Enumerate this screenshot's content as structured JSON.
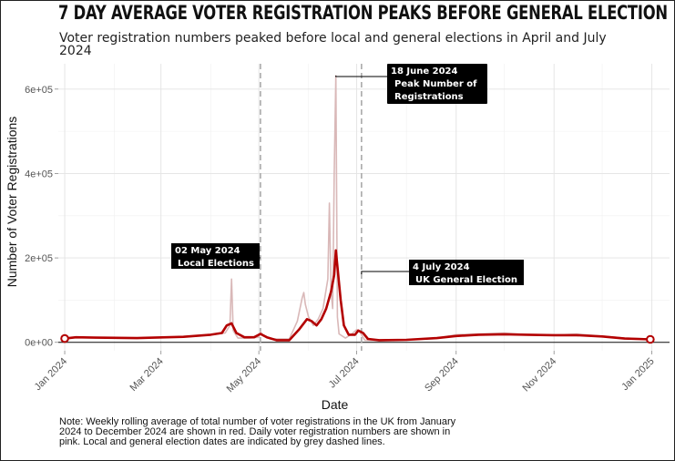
{
  "title": "7 DAY AVERAGE VOTER REGISTRATION PEAKS BEFORE GENERAL ELECTION",
  "subtitle": "Voter registration numbers peaked before local and general elections in April and July 2024",
  "note": "Note: Weekly rolling average of total number of voter registrations in the UK from January 2024 to December 2024 are shown in red. Daily voter registration numbers are shown in pink. Local and general election dates are indicated by grey dashed lines.",
  "colors": {
    "average": "#b30000",
    "daily": "#d9b8b8",
    "dashed": "#aaaaaa",
    "annotation_bg": "#000000"
  },
  "chart_data": {
    "type": "line",
    "xlabel": "Date",
    "ylabel": "Number of Voter Registrations",
    "x_range": [
      "2023-12-28",
      "2025-01-12"
    ],
    "ylim": [
      -20000,
      660000
    ],
    "y_ticks": [
      0,
      200000,
      400000,
      600000
    ],
    "y_tick_labels": [
      "0e+00",
      "2e+05",
      "4e+05",
      "6e+05"
    ],
    "x_ticks": [
      "2024-01-01",
      "2024-03-01",
      "2024-05-01",
      "2024-07-01",
      "2024-09-01",
      "2024-11-01",
      "2025-01-01"
    ],
    "x_tick_labels": [
      "Jan 2024",
      "Mar 2024",
      "May 2024",
      "Jul 2024",
      "Sep 2024",
      "Nov 2024",
      "Jan 2025"
    ],
    "grid": true,
    "vlines": [
      "2024-05-02",
      "2024-07-04"
    ],
    "annotations": [
      {
        "date": "2024-06-18",
        "lines": [
          "18 June 2024",
          "Peak Number of",
          "Registrations"
        ]
      },
      {
        "date": "2024-05-02",
        "lines": [
          "02 May 2024",
          "Local Elections"
        ]
      },
      {
        "date": "2024-07-04",
        "lines": [
          "4 July 2024",
          "UK General Election"
        ]
      }
    ],
    "series": [
      {
        "kind": "daily",
        "points": [
          [
            "2024-01-01",
            10000
          ],
          [
            "2024-01-10",
            12000
          ],
          [
            "2024-02-01",
            10000
          ],
          [
            "2024-03-01",
            11000
          ],
          [
            "2024-03-20",
            14000
          ],
          [
            "2024-04-05",
            20000
          ],
          [
            "2024-04-10",
            22000
          ],
          [
            "2024-04-13",
            40000
          ],
          [
            "2024-04-14",
            150000
          ],
          [
            "2024-04-15",
            28000
          ],
          [
            "2024-04-18",
            10000
          ],
          [
            "2024-04-25",
            10000
          ],
          [
            "2024-05-01",
            12000
          ],
          [
            "2024-05-02",
            25000
          ],
          [
            "2024-05-04",
            15000
          ],
          [
            "2024-05-10",
            8000
          ],
          [
            "2024-05-20",
            8000
          ],
          [
            "2024-05-25",
            50000
          ],
          [
            "2024-05-28",
            105000
          ],
          [
            "2024-05-29",
            118000
          ],
          [
            "2024-05-30",
            90000
          ],
          [
            "2024-06-01",
            60000
          ],
          [
            "2024-06-04",
            40000
          ],
          [
            "2024-06-07",
            55000
          ],
          [
            "2024-06-10",
            80000
          ],
          [
            "2024-06-13",
            150000
          ],
          [
            "2024-06-14",
            330000
          ],
          [
            "2024-06-15",
            120000
          ],
          [
            "2024-06-16",
            80000
          ],
          [
            "2024-06-17",
            400000
          ],
          [
            "2024-06-18",
            632000
          ],
          [
            "2024-06-19",
            60000
          ],
          [
            "2024-06-20",
            20000
          ],
          [
            "2024-06-24",
            10000
          ],
          [
            "2024-06-28",
            20000
          ],
          [
            "2024-07-01",
            30000
          ],
          [
            "2024-07-03",
            25000
          ],
          [
            "2024-07-06",
            5000
          ],
          [
            "2024-07-15",
            4000
          ],
          [
            "2024-08-01",
            6000
          ],
          [
            "2024-08-20",
            10000
          ],
          [
            "2024-09-01",
            18000
          ],
          [
            "2024-09-15",
            20000
          ],
          [
            "2024-10-01",
            22000
          ],
          [
            "2024-10-15",
            18000
          ],
          [
            "2024-11-01",
            17000
          ],
          [
            "2024-11-15",
            20000
          ],
          [
            "2024-11-30",
            15000
          ],
          [
            "2024-12-15",
            10000
          ],
          [
            "2024-12-31",
            8000
          ]
        ]
      },
      {
        "kind": "average",
        "points": [
          [
            "2024-01-01",
            9000
          ],
          [
            "2024-01-08",
            12000
          ],
          [
            "2024-01-20",
            11000
          ],
          [
            "2024-02-15",
            10000
          ],
          [
            "2024-03-15",
            13000
          ],
          [
            "2024-04-01",
            18000
          ],
          [
            "2024-04-08",
            22000
          ],
          [
            "2024-04-11",
            40000
          ],
          [
            "2024-04-14",
            45000
          ],
          [
            "2024-04-17",
            22000
          ],
          [
            "2024-04-22",
            12000
          ],
          [
            "2024-04-28",
            12000
          ],
          [
            "2024-05-02",
            20000
          ],
          [
            "2024-05-06",
            12000
          ],
          [
            "2024-05-12",
            5000
          ],
          [
            "2024-05-20",
            5000
          ],
          [
            "2024-05-26",
            30000
          ],
          [
            "2024-05-31",
            55000
          ],
          [
            "2024-06-03",
            50000
          ],
          [
            "2024-06-06",
            40000
          ],
          [
            "2024-06-09",
            55000
          ],
          [
            "2024-06-12",
            80000
          ],
          [
            "2024-06-15",
            120000
          ],
          [
            "2024-06-17",
            160000
          ],
          [
            "2024-06-18",
            218000
          ],
          [
            "2024-06-19",
            180000
          ],
          [
            "2024-06-21",
            100000
          ],
          [
            "2024-06-23",
            40000
          ],
          [
            "2024-06-26",
            18000
          ],
          [
            "2024-06-30",
            18000
          ],
          [
            "2024-07-02",
            28000
          ],
          [
            "2024-07-05",
            22000
          ],
          [
            "2024-07-08",
            8000
          ],
          [
            "2024-07-15",
            5000
          ],
          [
            "2024-08-01",
            6000
          ],
          [
            "2024-08-20",
            10000
          ],
          [
            "2024-09-01",
            15000
          ],
          [
            "2024-09-15",
            18000
          ],
          [
            "2024-10-01",
            19000
          ],
          [
            "2024-10-15",
            18000
          ],
          [
            "2024-11-01",
            17000
          ],
          [
            "2024-11-15",
            17000
          ],
          [
            "2024-12-01",
            14000
          ],
          [
            "2024-12-15",
            9000
          ],
          [
            "2024-12-31",
            7000
          ]
        ]
      }
    ]
  }
}
